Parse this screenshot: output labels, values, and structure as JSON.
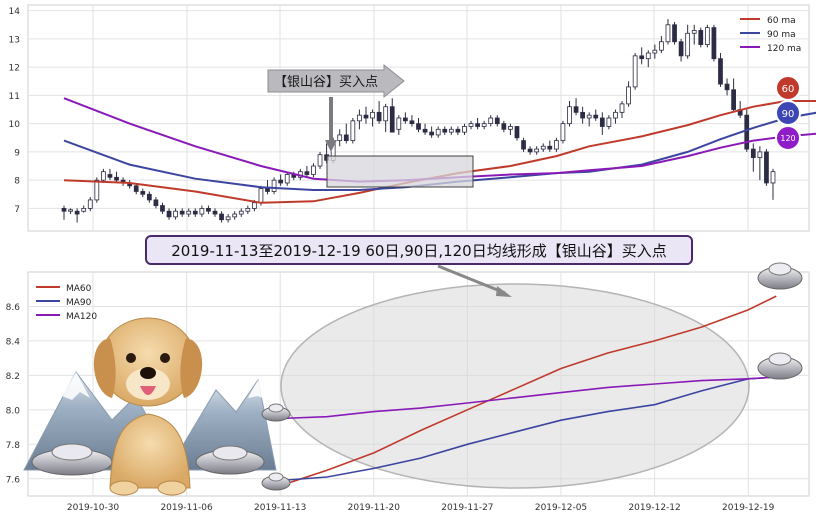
{
  "banner_text": "2019-11-13至2019-12-19 60日,90日,120日均线形成【银山谷】买入点",
  "annotation_text": "【银山谷】买入点",
  "badges": [
    "60",
    "90",
    "120"
  ],
  "colors": {
    "ma60": "#c03a2b",
    "ma90": "#3c46a0",
    "ma120": "#8a1ab8",
    "badge60": "#c0392b",
    "badge90": "#3c46b4",
    "badge120": "#8e1cc8",
    "banner_border": "#4a2a6a",
    "banner_fill": "#ebe6f5",
    "candle_up": "#ffffff",
    "candle_down": "#2c2c44"
  },
  "chart_data": [
    {
      "type": "candlestick",
      "ylim": [
        6.2,
        14.2
      ],
      "yticks": [
        7,
        8,
        9,
        10,
        11,
        12,
        13,
        14
      ],
      "grid": true,
      "legend_position": "top-right",
      "candles_ohlc": [
        [
          7.0,
          7.1,
          6.6,
          6.9
        ],
        [
          6.9,
          7.0,
          6.8,
          6.95
        ],
        [
          6.9,
          7.0,
          6.5,
          6.8
        ],
        [
          6.9,
          7.1,
          6.85,
          7.0
        ],
        [
          7.0,
          7.4,
          6.9,
          7.3
        ],
        [
          7.3,
          8.1,
          7.2,
          8.0
        ],
        [
          8.0,
          8.4,
          7.9,
          8.3
        ],
        [
          8.2,
          8.4,
          8.0,
          8.1
        ],
        [
          8.1,
          8.3,
          7.9,
          8.0
        ],
        [
          8.0,
          8.1,
          7.8,
          7.9
        ],
        [
          7.9,
          8.0,
          7.7,
          7.8
        ],
        [
          7.8,
          7.9,
          7.5,
          7.6
        ],
        [
          7.6,
          7.7,
          7.4,
          7.5
        ],
        [
          7.5,
          7.6,
          7.2,
          7.3
        ],
        [
          7.3,
          7.4,
          7.0,
          7.1
        ],
        [
          7.1,
          7.2,
          6.8,
          6.9
        ],
        [
          6.9,
          7.0,
          6.6,
          6.7
        ],
        [
          6.7,
          7.0,
          6.6,
          6.9
        ],
        [
          6.9,
          7.0,
          6.7,
          6.8
        ],
        [
          6.8,
          7.0,
          6.7,
          6.9
        ],
        [
          6.9,
          7.0,
          6.7,
          6.8
        ],
        [
          6.8,
          7.1,
          6.7,
          7.0
        ],
        [
          7.0,
          7.1,
          6.8,
          6.9
        ],
        [
          6.9,
          7.0,
          6.7,
          6.8
        ],
        [
          6.8,
          6.9,
          6.5,
          6.6
        ],
        [
          6.6,
          6.8,
          6.5,
          6.7
        ],
        [
          6.7,
          6.9,
          6.6,
          6.8
        ],
        [
          6.8,
          7.0,
          6.7,
          6.9
        ],
        [
          6.9,
          7.1,
          6.8,
          7.0
        ],
        [
          7.0,
          7.3,
          6.9,
          7.2
        ],
        [
          7.2,
          7.8,
          7.1,
          7.7
        ],
        [
          7.7,
          8.0,
          7.5,
          7.6
        ],
        [
          7.6,
          8.1,
          7.5,
          8.0
        ],
        [
          8.0,
          8.2,
          7.8,
          7.9
        ],
        [
          7.9,
          8.3,
          7.8,
          8.2
        ],
        [
          8.2,
          8.3,
          8.0,
          8.1
        ],
        [
          8.1,
          8.4,
          8.0,
          8.3
        ],
        [
          8.3,
          8.5,
          8.1,
          8.2
        ],
        [
          8.2,
          8.6,
          8.1,
          8.5
        ],
        [
          8.5,
          9.0,
          8.4,
          8.9
        ],
        [
          8.9,
          9.3,
          8.6,
          8.7
        ],
        [
          8.7,
          9.5,
          8.6,
          9.4
        ],
        [
          9.4,
          9.8,
          9.2,
          9.6
        ],
        [
          9.6,
          10.0,
          9.3,
          9.4
        ],
        [
          9.4,
          10.2,
          9.3,
          10.1
        ],
        [
          10.1,
          10.5,
          9.8,
          10.3
        ],
        [
          10.3,
          10.6,
          10.0,
          10.2
        ],
        [
          10.2,
          10.5,
          9.9,
          10.4
        ],
        [
          10.4,
          10.8,
          10.0,
          10.1
        ],
        [
          10.1,
          10.7,
          9.7,
          10.6
        ],
        [
          10.6,
          10.9,
          10.3,
          9.7
        ],
        [
          9.8,
          10.3,
          9.6,
          10.2
        ],
        [
          10.2,
          10.4,
          10.0,
          10.1
        ],
        [
          10.1,
          10.3,
          9.9,
          10.0
        ],
        [
          10.0,
          10.2,
          9.7,
          9.8
        ],
        [
          9.8,
          10.0,
          9.6,
          9.7
        ],
        [
          9.7,
          9.9,
          9.5,
          9.6
        ],
        [
          9.6,
          9.9,
          9.5,
          9.8
        ],
        [
          9.8,
          9.9,
          9.6,
          9.7
        ],
        [
          9.7,
          9.9,
          9.6,
          9.8
        ],
        [
          9.8,
          9.9,
          9.6,
          9.7
        ],
        [
          9.7,
          10.0,
          9.6,
          9.9
        ],
        [
          9.9,
          10.1,
          9.8,
          10.0
        ],
        [
          10.0,
          10.2,
          9.8,
          9.9
        ],
        [
          9.9,
          10.1,
          9.8,
          10.0
        ],
        [
          10.0,
          10.3,
          9.9,
          10.2
        ],
        [
          10.2,
          10.3,
          9.9,
          10.0
        ],
        [
          10.0,
          10.1,
          9.7,
          9.8
        ],
        [
          9.8,
          10.0,
          9.6,
          9.9
        ],
        [
          9.9,
          9.9,
          9.4,
          9.5
        ],
        [
          9.4,
          9.5,
          9.0,
          9.1
        ],
        [
          9.1,
          9.2,
          8.9,
          9.0
        ],
        [
          9.0,
          9.2,
          8.9,
          9.1
        ],
        [
          9.1,
          9.3,
          9.0,
          9.2
        ],
        [
          9.2,
          9.4,
          9.0,
          9.1
        ],
        [
          9.1,
          9.5,
          9.0,
          9.4
        ],
        [
          9.4,
          10.1,
          9.3,
          10.0
        ],
        [
          10.0,
          10.8,
          9.9,
          10.6
        ],
        [
          10.6,
          10.9,
          10.3,
          10.4
        ],
        [
          10.4,
          10.6,
          10.0,
          10.2
        ],
        [
          10.2,
          10.4,
          9.9,
          10.3
        ],
        [
          10.3,
          10.5,
          10.1,
          10.2
        ],
        [
          10.2,
          10.4,
          9.6,
          9.9
        ],
        [
          9.9,
          10.3,
          9.8,
          10.2
        ],
        [
          10.2,
          10.5,
          10.0,
          10.4
        ],
        [
          10.4,
          10.8,
          10.2,
          10.7
        ],
        [
          10.7,
          11.5,
          10.6,
          11.3
        ],
        [
          11.3,
          12.5,
          11.2,
          12.4
        ],
        [
          12.4,
          12.7,
          12.1,
          12.3
        ],
        [
          12.3,
          12.6,
          12.0,
          12.5
        ],
        [
          12.5,
          12.8,
          12.3,
          12.6
        ],
        [
          12.6,
          13.1,
          12.5,
          12.9
        ],
        [
          12.9,
          13.7,
          12.8,
          13.5
        ],
        [
          13.5,
          13.6,
          12.8,
          12.9
        ],
        [
          12.9,
          13.0,
          12.2,
          12.4
        ],
        [
          12.4,
          13.5,
          12.3,
          13.2
        ],
        [
          13.2,
          13.5,
          12.8,
          13.3
        ],
        [
          13.3,
          13.4,
          12.7,
          12.8
        ],
        [
          12.8,
          13.5,
          12.7,
          13.4
        ],
        [
          13.4,
          13.5,
          12.2,
          12.3
        ],
        [
          12.3,
          12.5,
          11.3,
          11.4
        ],
        [
          11.4,
          11.6,
          11.0,
          11.2
        ],
        [
          11.2,
          11.6,
          10.4,
          10.5
        ],
        [
          10.5,
          10.8,
          10.2,
          10.3
        ],
        [
          10.3,
          10.5,
          9.0,
          9.1
        ],
        [
          9.1,
          9.3,
          8.3,
          8.8
        ],
        [
          8.8,
          9.2,
          8.0,
          9.0
        ],
        [
          9.0,
          9.1,
          7.8,
          7.9
        ],
        [
          7.9,
          8.4,
          7.3,
          8.3
        ]
      ],
      "series": [
        {
          "name": "60 ma",
          "values": [
            [
              0,
              8.0
            ],
            [
              10,
              7.9
            ],
            [
              20,
              7.6
            ],
            [
              30,
              7.2
            ],
            [
              38,
              7.25
            ],
            [
              45,
              7.55
            ],
            [
              52,
              7.9
            ],
            [
              60,
              8.25
            ],
            [
              68,
              8.5
            ],
            [
              75,
              8.85
            ],
            [
              80,
              9.2
            ],
            [
              88,
              9.55
            ],
            [
              95,
              9.95
            ],
            [
              100,
              10.3
            ],
            [
              105,
              10.6
            ],
            [
              110,
              10.8
            ],
            [
              115,
              10.8
            ],
            [
              119,
              10.75
            ]
          ]
        },
        {
          "name": "90 ma",
          "values": [
            [
              0,
              9.4
            ],
            [
              10,
              8.55
            ],
            [
              20,
              8.05
            ],
            [
              30,
              7.75
            ],
            [
              38,
              7.65
            ],
            [
              45,
              7.65
            ],
            [
              52,
              7.75
            ],
            [
              60,
              7.95
            ],
            [
              68,
              8.1
            ],
            [
              75,
              8.25
            ],
            [
              80,
              8.3
            ],
            [
              88,
              8.55
            ],
            [
              95,
              9.0
            ],
            [
              100,
              9.45
            ],
            [
              105,
              9.85
            ],
            [
              110,
              10.2
            ],
            [
              115,
              10.4
            ],
            [
              119,
              10.4
            ]
          ]
        },
        {
          "name": "120 ma",
          "values": [
            [
              0,
              10.9
            ],
            [
              10,
              10.0
            ],
            [
              20,
              9.2
            ],
            [
              30,
              8.5
            ],
            [
              38,
              8.05
            ],
            [
              45,
              7.95
            ],
            [
              52,
              8.0
            ],
            [
              60,
              8.1
            ],
            [
              68,
              8.2
            ],
            [
              75,
              8.25
            ],
            [
              80,
              8.35
            ],
            [
              88,
              8.5
            ],
            [
              95,
              8.85
            ],
            [
              100,
              9.15
            ],
            [
              105,
              9.4
            ],
            [
              110,
              9.55
            ],
            [
              115,
              9.65
            ],
            [
              119,
              9.65
            ]
          ]
        }
      ]
    },
    {
      "type": "line",
      "ylim": [
        7.5,
        8.8
      ],
      "yticks": [
        "7.6",
        "7.8",
        "8.0",
        "8.2",
        "8.4",
        "8.6"
      ],
      "xtick_labels": [
        "2019-10-30",
        "2019-11-06",
        "2019-11-13",
        "2019-11-20",
        "2019-11-27",
        "2019-12-05",
        "2019-12-12",
        "2019-12-19"
      ],
      "grid": true,
      "legend_position": "top-left",
      "series": [
        {
          "name": "MA60",
          "values": [
            [
              2.0,
              7.56
            ],
            [
              2.5,
              7.65
            ],
            [
              3.0,
              7.75
            ],
            [
              3.5,
              7.88
            ],
            [
              4.0,
              8.0
            ],
            [
              4.5,
              8.12
            ],
            [
              5.0,
              8.24
            ],
            [
              5.5,
              8.33
            ],
            [
              6.0,
              8.4
            ],
            [
              6.5,
              8.48
            ],
            [
              7.0,
              8.58
            ],
            [
              7.3,
              8.66
            ]
          ]
        },
        {
          "name": "MA90",
          "values": [
            [
              2.0,
              7.59
            ],
            [
              2.5,
              7.61
            ],
            [
              3.0,
              7.66
            ],
            [
              3.5,
              7.72
            ],
            [
              4.0,
              7.8
            ],
            [
              4.5,
              7.87
            ],
            [
              5.0,
              7.94
            ],
            [
              5.5,
              7.99
            ],
            [
              6.0,
              8.03
            ],
            [
              6.5,
              8.11
            ],
            [
              7.0,
              8.18
            ],
            [
              7.3,
              8.19
            ]
          ]
        },
        {
          "name": "MA120",
          "values": [
            [
              2.0,
              7.95
            ],
            [
              2.5,
              7.96
            ],
            [
              3.0,
              7.99
            ],
            [
              3.5,
              8.01
            ],
            [
              4.0,
              8.04
            ],
            [
              4.5,
              8.07
            ],
            [
              5.0,
              8.1
            ],
            [
              5.5,
              8.13
            ],
            [
              6.0,
              8.15
            ],
            [
              6.5,
              8.17
            ],
            [
              7.0,
              8.18
            ],
            [
              7.3,
              8.19
            ]
          ]
        }
      ]
    }
  ]
}
